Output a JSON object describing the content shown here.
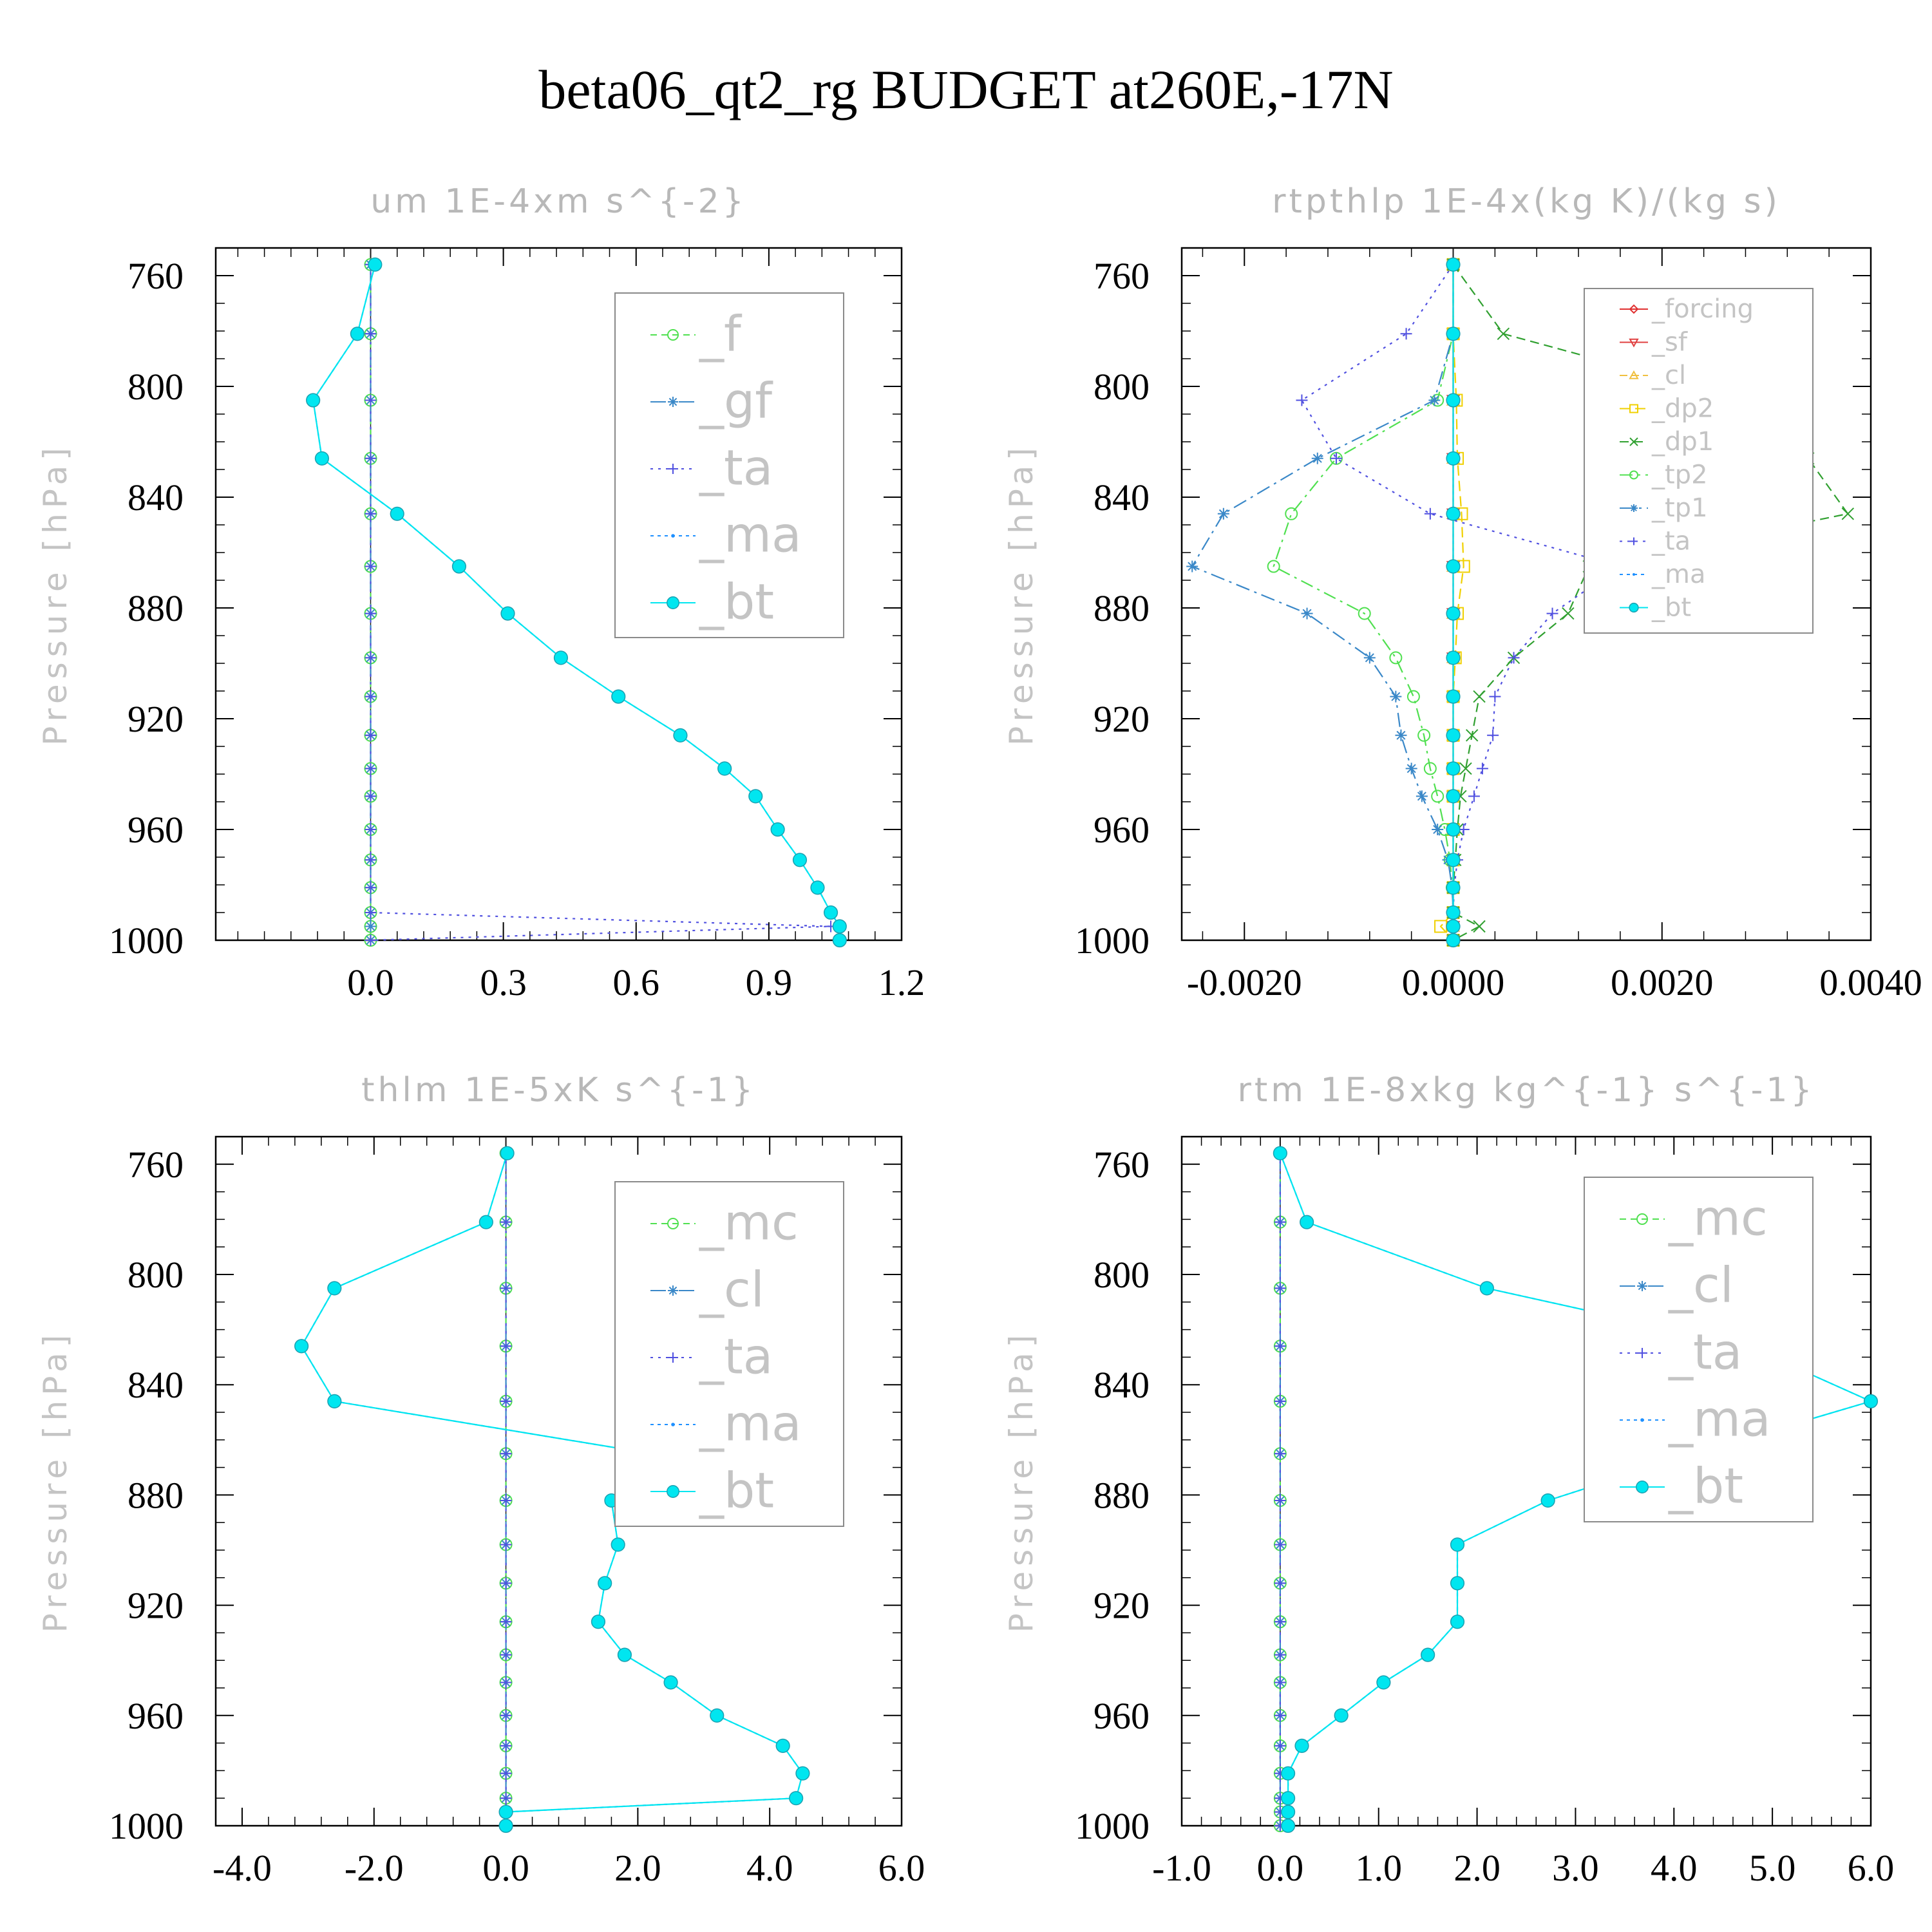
{
  "title": "beta06_qt2_rg  BUDGET at260E,-17N",
  "ylabel": "Pressure [hPa]",
  "chart_data": [
    {
      "type": "line",
      "title": "um  1E-4xm s^{-2}",
      "ylabel": "Pressure [hPa]",
      "ylim": [
        1000,
        750
      ],
      "y_ticks": [
        "760",
        "800",
        "840",
        "880",
        "920",
        "960",
        "1000"
      ],
      "xlim": [
        -0.35,
        1.2
      ],
      "x_ticks": [
        "0.0",
        "0.3",
        "0.6",
        "0.9",
        "1.2"
      ],
      "x_tick_values": [
        0,
        0.3,
        0.6,
        0.9,
        1.2
      ],
      "legend_position": "top-right",
      "pressure": [
        756,
        781,
        805,
        826,
        846,
        865,
        882,
        898,
        912,
        926,
        938,
        948,
        960,
        971,
        981,
        990,
        995,
        1000
      ],
      "series": [
        {
          "name": "_f",
          "color": "#50e050",
          "marker": "circle",
          "dash": "10,7",
          "values": [
            0,
            0,
            0,
            0,
            0,
            0,
            0,
            0,
            0,
            0,
            0,
            0,
            0,
            0,
            0,
            0,
            0,
            0
          ]
        },
        {
          "name": "_gf",
          "color": "#3a88c8",
          "marker": "star",
          "dash": "24,8,4,8",
          "values": [
            0,
            0,
            0,
            0,
            0,
            0,
            0,
            0,
            0,
            0,
            0,
            0,
            0,
            0,
            0,
            0,
            0,
            0
          ]
        },
        {
          "name": "_ta",
          "color": "#5050e0",
          "marker": "plus",
          "dash": "4,8",
          "values": [
            0,
            0,
            0,
            0,
            0,
            0,
            0,
            0,
            0,
            0,
            0,
            0,
            0,
            0,
            0,
            0,
            1.04,
            0
          ]
        },
        {
          "name": "_ma",
          "color": "#1e90ff",
          "marker": "dot",
          "dash": "5,6",
          "values": [
            0.01,
            -0.03,
            -0.13,
            -0.11,
            0.06,
            0.2,
            0.31,
            0.43,
            0.56,
            0.7,
            0.8,
            0.87,
            0.92,
            0.97,
            1.01,
            1.04,
            1.06,
            1.06
          ]
        },
        {
          "name": "_bt",
          "color": "#00e6f0",
          "marker": "bigdot",
          "dash": "",
          "values": [
            0.01,
            -0.03,
            -0.13,
            -0.11,
            0.06,
            0.2,
            0.31,
            0.43,
            0.56,
            0.7,
            0.8,
            0.87,
            0.92,
            0.97,
            1.01,
            1.04,
            1.06,
            1.06
          ]
        }
      ]
    },
    {
      "type": "line",
      "title": "rtpthlp  1E-4x(kg K)/(kg s)",
      "ylabel": "Pressure [hPa]",
      "ylim": [
        1000,
        750
      ],
      "y_ticks": [
        "760",
        "800",
        "840",
        "880",
        "920",
        "960",
        "1000"
      ],
      "xlim": [
        -0.0026,
        0.004
      ],
      "x_ticks": [
        "-0.0020",
        "0.0000",
        "0.0020",
        "0.0040"
      ],
      "x_tick_values": [
        -0.002,
        0,
        0.002,
        0.004
      ],
      "legend_position": "top-right",
      "pressure": [
        756,
        781,
        805,
        826,
        846,
        865,
        882,
        898,
        912,
        926,
        938,
        948,
        960,
        971,
        981,
        990,
        995,
        1000
      ],
      "series": [
        {
          "name": "_forcing",
          "color": "#e03030",
          "marker": "diamond",
          "dash": "",
          "values": [
            0,
            0,
            0,
            0,
            0,
            0,
            0,
            0,
            0,
            0,
            0,
            0,
            0,
            0,
            0,
            0,
            0,
            0
          ]
        },
        {
          "name": "_sf",
          "color": "#e04040",
          "marker": "triangle-down",
          "dash": "",
          "values": [
            0,
            0,
            0,
            0,
            0,
            0,
            0,
            0,
            0,
            0,
            0,
            0,
            0,
            0,
            0,
            0,
            0,
            0
          ]
        },
        {
          "name": "_cl",
          "color": "#f0c040",
          "marker": "triangle-up",
          "dash": "12,6",
          "values": [
            0,
            0,
            0,
            0,
            0,
            0,
            0,
            0,
            0,
            0,
            0,
            0,
            0,
            0,
            0,
            0,
            0,
            0
          ]
        },
        {
          "name": "_dp2",
          "color": "#f0d000",
          "marker": "square",
          "dash": "16,8",
          "values": [
            0,
            0,
            3e-05,
            4e-05,
            8e-05,
            0.0001,
            4e-05,
            2e-05,
            0,
            0,
            0,
            0,
            0,
            0,
            0,
            0,
            -0.00012,
            0
          ]
        },
        {
          "name": "_dp1",
          "color": "#30a030",
          "marker": "cross",
          "dash": "14,8",
          "values": [
            0,
            0.00048,
            0.00282,
            0.0034,
            0.00378,
            0.0013,
            0.0011,
            0.00058,
            0.00025,
            0.00018,
            0.00012,
            7e-05,
            4e-05,
            2e-05,
            0,
            0,
            0.00025,
            0
          ]
        },
        {
          "name": "_tp2",
          "color": "#50e050",
          "marker": "circle",
          "dash": "20,8,4,8",
          "values": [
            0,
            0,
            -0.00015,
            -0.00112,
            -0.00155,
            -0.00172,
            -0.00085,
            -0.00055,
            -0.00038,
            -0.00028,
            -0.00022,
            -0.00015,
            -8e-05,
            -3e-05,
            -1e-05,
            0,
            0,
            0
          ]
        },
        {
          "name": "_tp1",
          "color": "#3a88c8",
          "marker": "star",
          "dash": "22,8,4,8",
          "values": [
            0,
            0,
            -0.00018,
            -0.0013,
            -0.0022,
            -0.0025,
            -0.0014,
            -0.0008,
            -0.00055,
            -0.0005,
            -0.0004,
            -0.0003,
            -0.00015,
            -5e-05,
            -1e-05,
            0,
            0,
            0
          ]
        },
        {
          "name": "_ta",
          "color": "#5050e0",
          "marker": "plus",
          "dash": "4,8",
          "values": [
            0,
            -0.00045,
            -0.00145,
            -0.00112,
            -0.00022,
            0.0016,
            0.00095,
            0.00058,
            0.0004,
            0.00038,
            0.00028,
            0.0002,
            0.0001,
            4e-05,
            1e-05,
            0,
            0,
            0
          ]
        },
        {
          "name": "_ma",
          "color": "#1e90ff",
          "marker": "dot",
          "dash": "5,6",
          "values": [
            0,
            0,
            0,
            0,
            0,
            0,
            0,
            0,
            0,
            0,
            0,
            0,
            0,
            0,
            0,
            0,
            0,
            0
          ]
        },
        {
          "name": "_bt",
          "color": "#00e6f0",
          "marker": "bigdot",
          "dash": "",
          "values": [
            0,
            0,
            0,
            0,
            0,
            0,
            0,
            0,
            0,
            0,
            0,
            0,
            0,
            0,
            0,
            0,
            0,
            0
          ]
        }
      ]
    },
    {
      "type": "line",
      "title": "thlm  1E-5xK s^{-1}",
      "ylabel": "Pressure [hPa]",
      "ylim": [
        1000,
        750
      ],
      "y_ticks": [
        "760",
        "800",
        "840",
        "880",
        "920",
        "960",
        "1000"
      ],
      "xlim": [
        -4.4,
        6.0
      ],
      "x_ticks": [
        "-4.0",
        "-2.0",
        "0.0",
        "2.0",
        "4.0",
        "6.0"
      ],
      "x_tick_values": [
        -4,
        -2,
        0,
        2,
        4,
        6
      ],
      "legend_position": "top-right",
      "pressure": [
        756,
        781,
        805,
        826,
        846,
        865,
        882,
        898,
        912,
        926,
        938,
        948,
        960,
        971,
        981,
        990,
        995,
        1000
      ],
      "series": [
        {
          "name": "_mc",
          "color": "#50e050",
          "marker": "circle",
          "dash": "10,7",
          "values": [
            0,
            0,
            0,
            0,
            0,
            0,
            0,
            0,
            0,
            0,
            0,
            0,
            0,
            0,
            0,
            0,
            0,
            0
          ]
        },
        {
          "name": "_cl",
          "color": "#3a88c8",
          "marker": "star",
          "dash": "24,8,4,8",
          "values": [
            0,
            0,
            0,
            0,
            0,
            0,
            0,
            0,
            0,
            0,
            0,
            0,
            0,
            0,
            0,
            0,
            0,
            0
          ]
        },
        {
          "name": "_ta",
          "color": "#5050e0",
          "marker": "plus",
          "dash": "4,8",
          "values": [
            0,
            0,
            0,
            0,
            0,
            0,
            0,
            0,
            0,
            0,
            0,
            0,
            0,
            0,
            0,
            0,
            0,
            0
          ]
        },
        {
          "name": "_ma",
          "color": "#1e90ff",
          "marker": "dot",
          "dash": "5,6",
          "values": [
            0.02,
            -0.3,
            -2.6,
            -3.1,
            -2.6,
            2.2,
            1.6,
            1.7,
            1.5,
            1.4,
            1.8,
            2.5,
            3.2,
            4.2,
            4.5,
            4.4,
            0,
            0
          ]
        },
        {
          "name": "_bt",
          "color": "#00e6f0",
          "marker": "bigdot",
          "dash": "",
          "values": [
            0.02,
            -0.3,
            -2.6,
            -3.1,
            -2.6,
            2.2,
            1.6,
            1.7,
            1.5,
            1.4,
            1.8,
            2.5,
            3.2,
            4.2,
            4.5,
            4.4,
            0,
            0
          ]
        }
      ]
    },
    {
      "type": "line",
      "title": "rtm  1E-8xkg kg^{-1} s^{-1}",
      "ylabel": "Pressure [hPa]",
      "ylim": [
        1000,
        750
      ],
      "y_ticks": [
        "760",
        "800",
        "840",
        "880",
        "920",
        "960",
        "1000"
      ],
      "xlim": [
        -1.0,
        6.0
      ],
      "x_ticks": [
        "-1.0",
        "0.0",
        "1.0",
        "2.0",
        "3.0",
        "4.0",
        "5.0",
        "6.0"
      ],
      "x_tick_values": [
        -1,
        0,
        1,
        2,
        3,
        4,
        5,
        6
      ],
      "legend_position": "top-right",
      "pressure": [
        756,
        781,
        805,
        826,
        846,
        865,
        882,
        898,
        912,
        926,
        938,
        948,
        960,
        971,
        981,
        990,
        995,
        1000
      ],
      "series": [
        {
          "name": "_mc",
          "color": "#50e050",
          "marker": "circle",
          "dash": "10,7",
          "values": [
            0,
            0,
            0,
            0,
            0,
            0,
            0,
            0,
            0,
            0,
            0,
            0,
            0,
            0,
            0,
            0,
            0,
            0
          ]
        },
        {
          "name": "_cl",
          "color": "#3a88c8",
          "marker": "star",
          "dash": "24,8,4,8",
          "values": [
            0,
            0,
            0,
            0,
            0,
            0,
            0,
            0,
            0,
            0,
            0,
            0,
            0,
            0,
            0,
            0,
            0,
            0
          ]
        },
        {
          "name": "_ta",
          "color": "#5050e0",
          "marker": "plus",
          "dash": "4,8",
          "values": [
            0,
            0,
            0,
            0,
            0,
            0,
            0,
            0,
            0,
            0,
            0,
            0,
            0,
            0,
            0,
            0,
            0,
            0
          ]
        },
        {
          "name": "_ma",
          "color": "#1e90ff",
          "marker": "dot",
          "dash": "5,6",
          "values": [
            0,
            0.27,
            2.1,
            4.75,
            6.0,
            4.2,
            2.72,
            1.8,
            1.8,
            1.8,
            1.5,
            1.05,
            0.62,
            0.22,
            0.08,
            0.08,
            0.08,
            0.08
          ]
        },
        {
          "name": "_bt",
          "color": "#00e6f0",
          "marker": "bigdot",
          "dash": "",
          "values": [
            0,
            0.27,
            2.1,
            4.75,
            6.0,
            4.2,
            2.72,
            1.8,
            1.8,
            1.8,
            1.5,
            1.05,
            0.62,
            0.22,
            0.08,
            0.08,
            0.08,
            0.08
          ]
        }
      ]
    }
  ]
}
